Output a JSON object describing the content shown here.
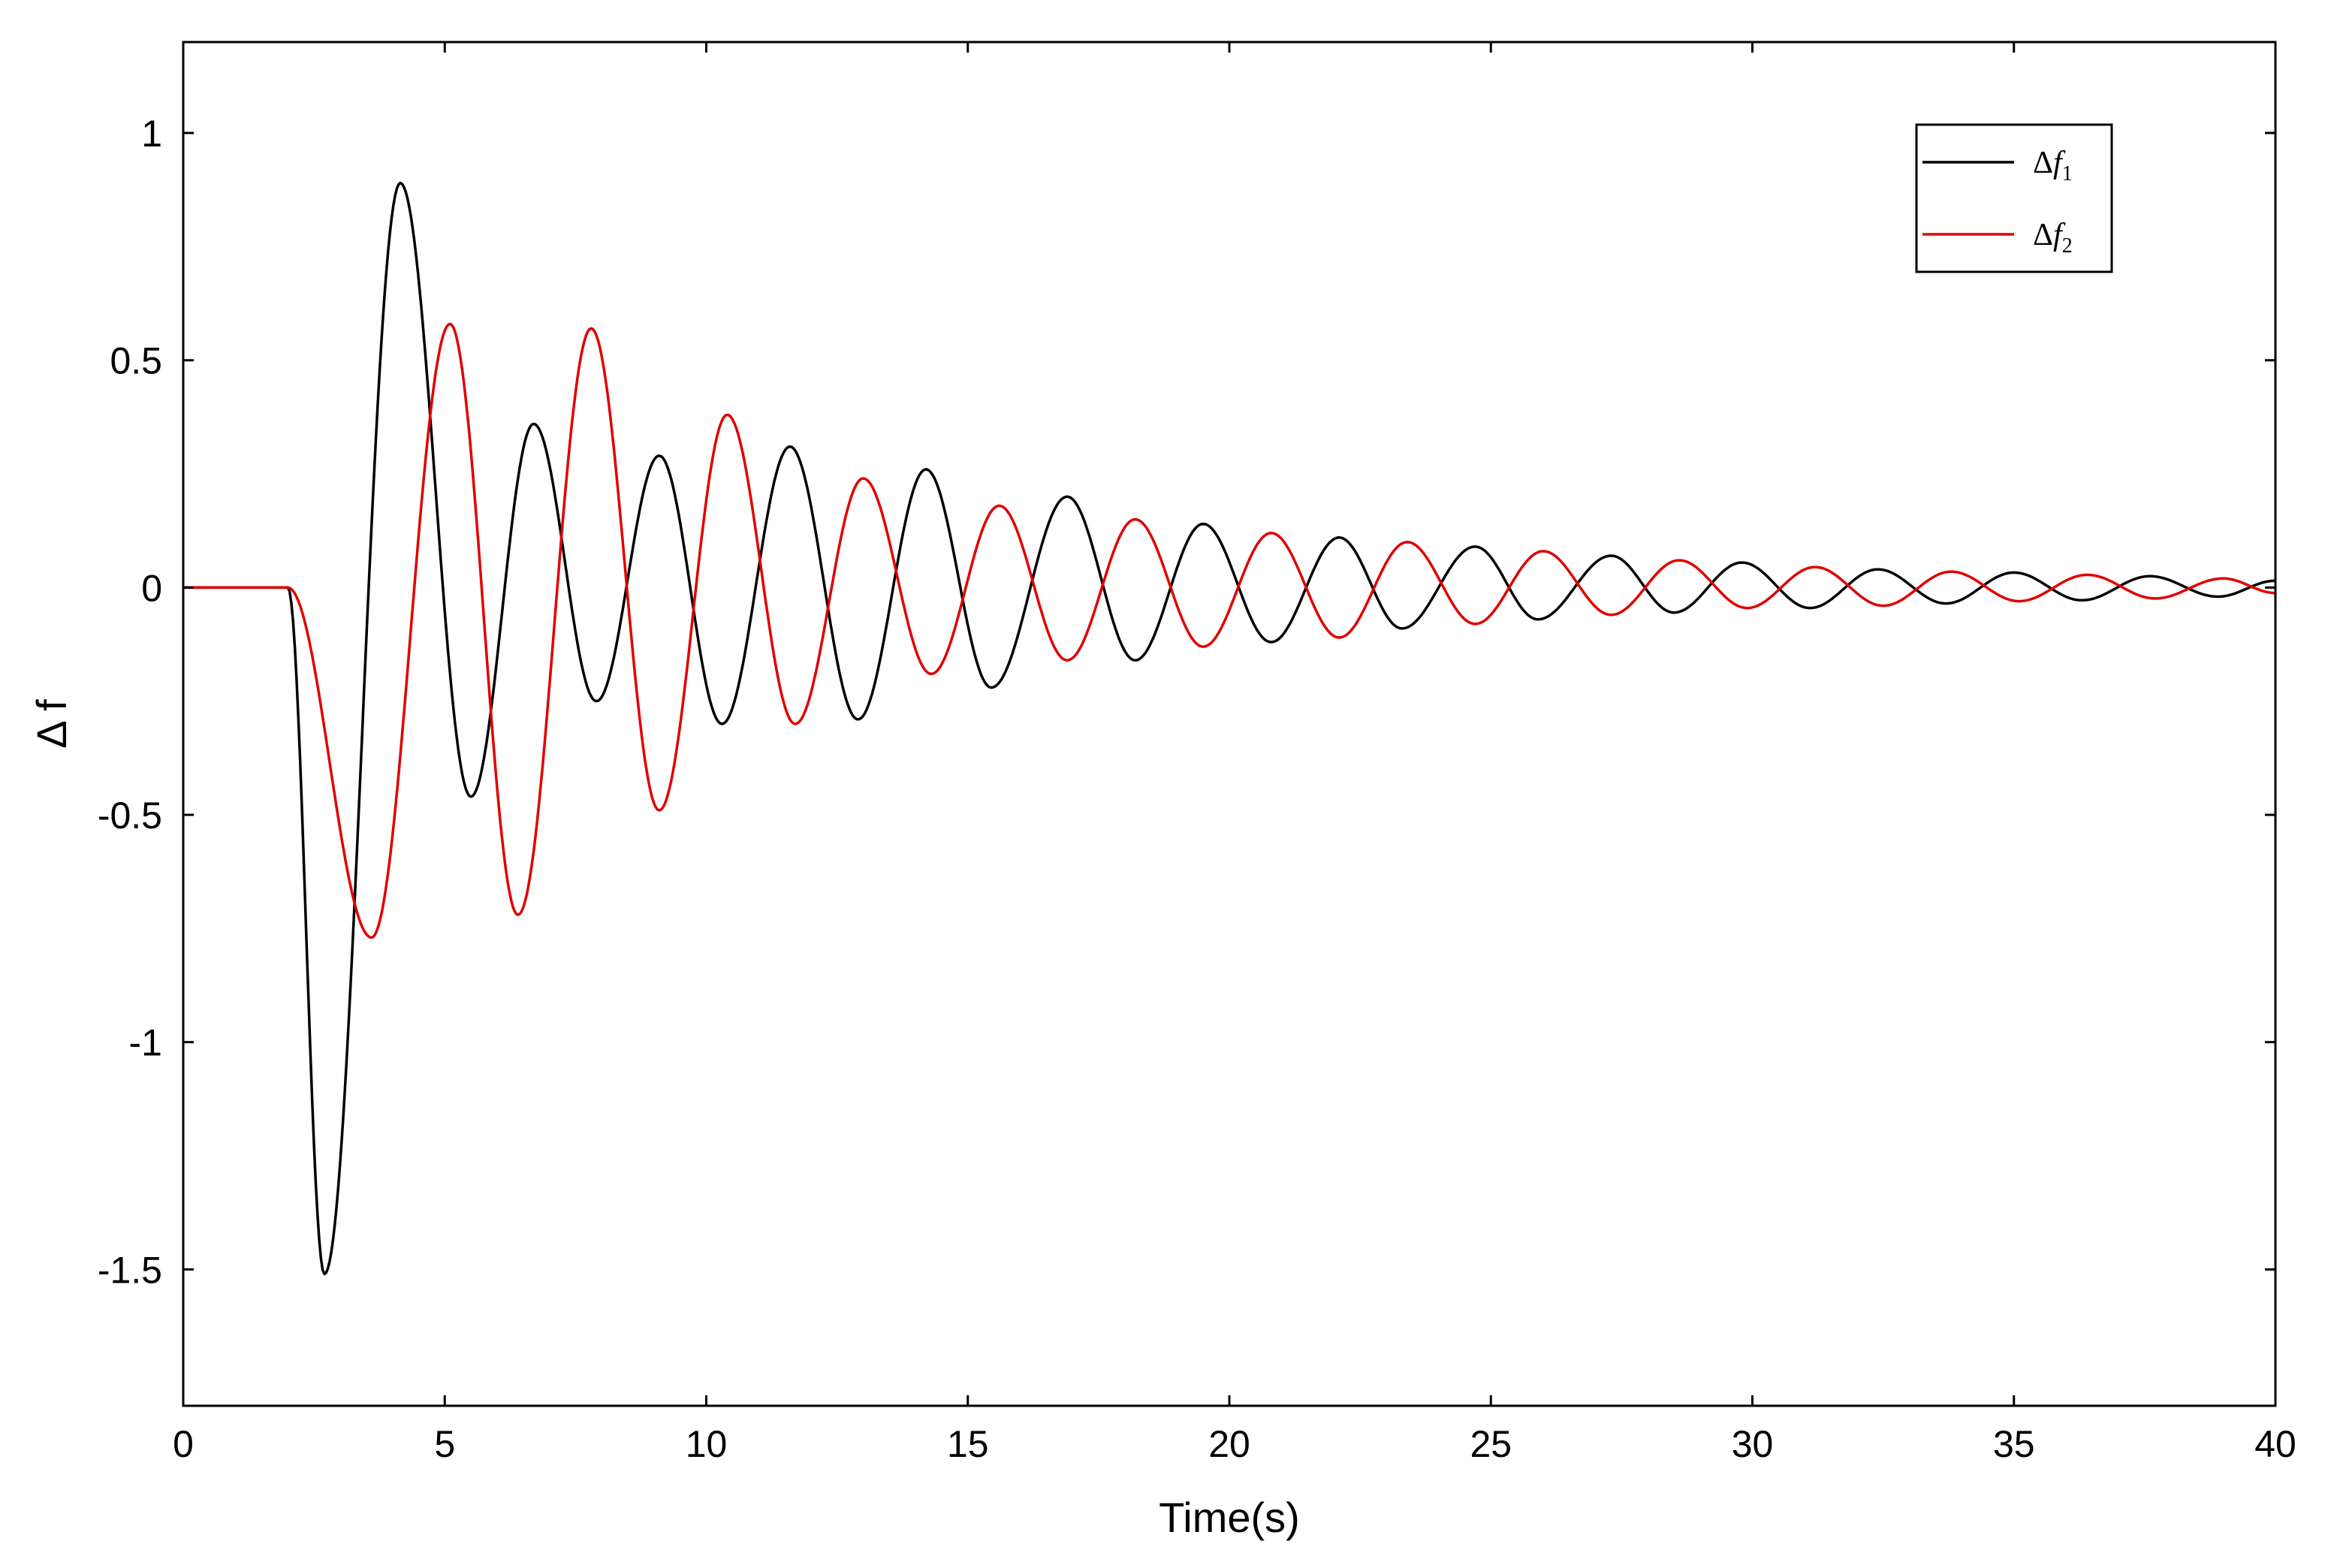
{
  "chart_data": {
    "type": "line",
    "xlabel": "Time(s)",
    "ylabel": "Δ f",
    "xlim": [
      0,
      40
    ],
    "ylim": [
      -1.8,
      1.2
    ],
    "xticks": [
      0,
      5,
      10,
      15,
      20,
      25,
      30,
      35,
      40
    ],
    "xtick_labels": [
      "0",
      "5",
      "10",
      "15",
      "20",
      "25",
      "30",
      "35",
      "40"
    ],
    "yticks": [
      1,
      0.5,
      0,
      -0.5,
      -1,
      -1.5
    ],
    "ytick_labels": [
      "1",
      "0.5",
      "0",
      "-0.5",
      "-1",
      "-1.5"
    ],
    "grid": false,
    "legend_position": "top-right",
    "legend": [
      {
        "symbol": "Δ",
        "var": "f",
        "sub": "1"
      },
      {
        "symbol": "Δ",
        "var": "f",
        "sub": "2"
      }
    ],
    "series": [
      {
        "color": "#000000",
        "x": [
          0,
          1,
          2,
          2.7,
          4.15,
          5.5,
          6.7,
          7.9,
          9.1,
          10.3,
          11.6,
          12.9,
          14.2,
          15.45,
          16.9,
          18.2,
          19.5,
          20.8,
          22.1,
          23.3,
          24.7,
          25.9,
          27.3,
          28.5,
          29.8,
          31.1,
          32.4,
          33.7,
          35.0,
          36.3,
          37.6,
          38.9,
          40
        ],
        "y": [
          0,
          0,
          0,
          -1.51,
          0.89,
          -0.46,
          0.36,
          -0.25,
          0.29,
          -0.3,
          0.31,
          -0.29,
          0.26,
          -0.22,
          0.2,
          -0.16,
          0.14,
          -0.12,
          0.11,
          -0.09,
          0.09,
          -0.07,
          0.07,
          -0.055,
          0.055,
          -0.045,
          0.04,
          -0.035,
          0.033,
          -0.028,
          0.025,
          -0.02,
          0.015
        ]
      },
      {
        "color": "#e00000",
        "x": [
          0,
          1,
          2,
          3.6,
          5.1,
          6.4,
          7.8,
          9.1,
          10.4,
          11.7,
          13.0,
          14.3,
          15.6,
          16.9,
          18.2,
          19.5,
          20.8,
          22.1,
          23.4,
          24.7,
          26.0,
          27.3,
          28.6,
          29.9,
          31.2,
          32.5,
          33.8,
          35.1,
          36.4,
          37.7,
          39.0,
          40
        ],
        "y": [
          0,
          0,
          0,
          -0.77,
          0.58,
          -0.72,
          0.57,
          -0.49,
          0.38,
          -0.3,
          0.24,
          -0.19,
          0.18,
          -0.16,
          0.15,
          -0.13,
          0.12,
          -0.11,
          0.1,
          -0.08,
          0.08,
          -0.06,
          0.06,
          -0.045,
          0.045,
          -0.04,
          0.035,
          -0.03,
          0.028,
          -0.024,
          0.02,
          -0.012
        ]
      }
    ]
  }
}
